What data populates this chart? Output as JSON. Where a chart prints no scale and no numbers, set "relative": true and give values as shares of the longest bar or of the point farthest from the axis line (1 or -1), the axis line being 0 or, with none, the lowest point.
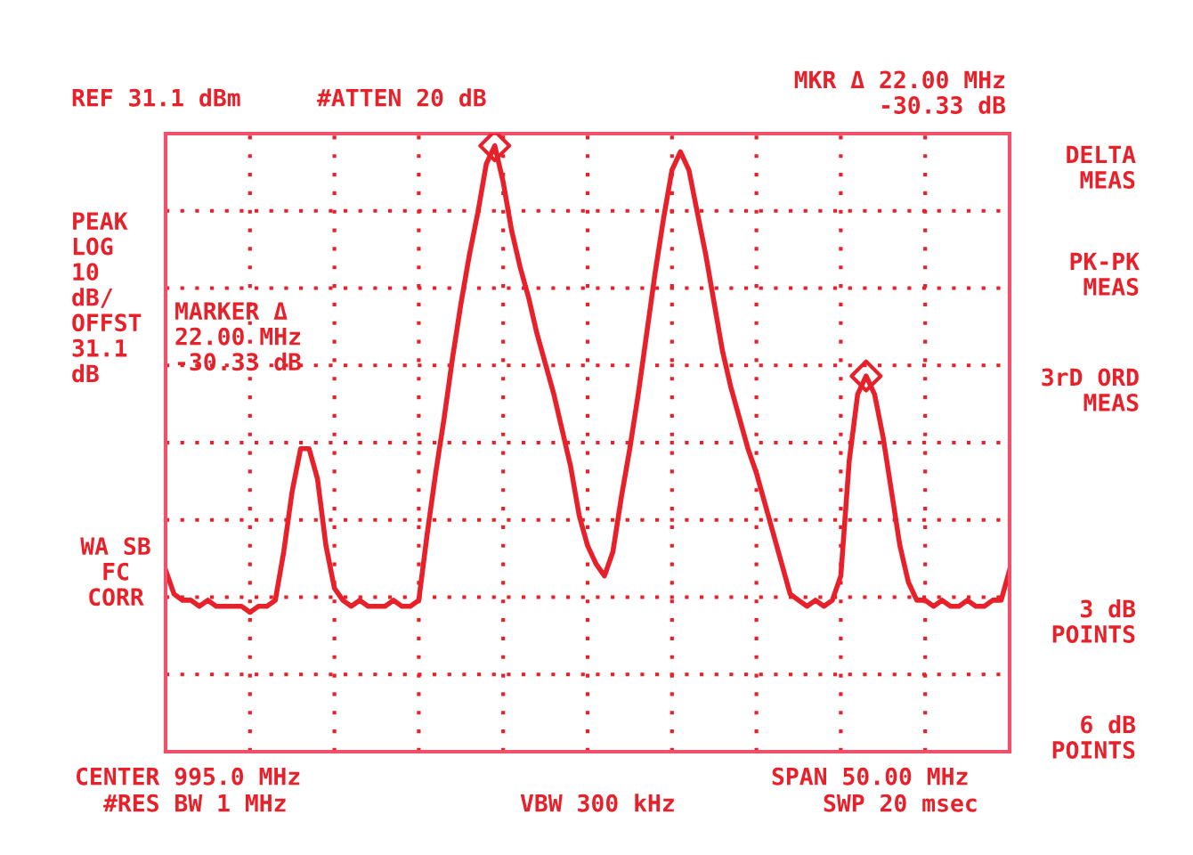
{
  "chart_data": {
    "type": "line",
    "relative": true,
    "grid": true,
    "legend": false,
    "categories": [
      null,
      null,
      null,
      null,
      null,
      null,
      null,
      null,
      null,
      null,
      null,
      null,
      null,
      null,
      null,
      null,
      null,
      null,
      null,
      null,
      null,
      null,
      null,
      null,
      null,
      null,
      null,
      null,
      null,
      null,
      null,
      null,
      null,
      null,
      null,
      null,
      null,
      null,
      null,
      null,
      null,
      null,
      null,
      null,
      null,
      null,
      null,
      null,
      null,
      null,
      null,
      null,
      null,
      null,
      null,
      null,
      null,
      null,
      null,
      null,
      null,
      null,
      null,
      null,
      null,
      null,
      null,
      null,
      null,
      null,
      null,
      null,
      null,
      null,
      null,
      null,
      null,
      null,
      null,
      null,
      null,
      null,
      null,
      null,
      null,
      null,
      null,
      null,
      null,
      null,
      null,
      null,
      null,
      null,
      null,
      null,
      null,
      null,
      null,
      null,
      null
    ],
    "series": [
      {
        "color": "#e8202a",
        "marker": "none",
        "line_style": "solid",
        "values": [
          0.3,
          0.26,
          0.25,
          0.25,
          0.24,
          0.25,
          0.24,
          0.24,
          0.24,
          0.24,
          0.23,
          0.24,
          0.24,
          0.25,
          0.33,
          0.43,
          0.5,
          0.5,
          0.45,
          0.34,
          0.27,
          0.25,
          0.24,
          0.25,
          0.24,
          0.24,
          0.24,
          0.25,
          0.24,
          0.24,
          0.25,
          0.36,
          0.46,
          0.55,
          0.65,
          0.74,
          0.82,
          0.89,
          0.97,
          1.0,
          0.94,
          0.86,
          0.8,
          0.75,
          0.69,
          0.64,
          0.59,
          0.53,
          0.47,
          0.39,
          0.34,
          0.31,
          0.29,
          0.33,
          0.42,
          0.5,
          0.59,
          0.69,
          0.79,
          0.88,
          0.96,
          0.99,
          0.96,
          0.89,
          0.82,
          0.74,
          0.66,
          0.6,
          0.55,
          0.5,
          0.46,
          0.41,
          0.36,
          0.31,
          0.26,
          0.25,
          0.24,
          0.25,
          0.24,
          0.25,
          0.29,
          0.48,
          0.59,
          0.62,
          0.59,
          0.52,
          0.43,
          0.34,
          0.28,
          0.25,
          0.25,
          0.24,
          0.25,
          0.24,
          0.24,
          0.25,
          0.24,
          0.24,
          0.25,
          0.25,
          0.3
        ]
      }
    ],
    "annotations": [
      "REF 31.1 dBm",
      "#ATTEN 20 dB",
      "MKR Δ 22.00 MHz\n-30.33 dB",
      "PEAK\nLOG\n10\ndB/\nOFFST\n31.1\ndB",
      "WA SB\nFC\nCORR",
      "MARKER Δ\n22.00 MHz\n-30.33 dB",
      "DELTA\nMEAS",
      "PK-PK\nMEAS",
      "3rD ORD\nMEAS",
      "3 dB\nPOINTS",
      "6 dB\nPOINTS",
      "CENTER 995.0 MHz",
      "#RES BW 1 MHz",
      "VBW 300 kHz",
      "SPAN 50.00 MHz",
      "SWP 20 msec"
    ]
  }
}
